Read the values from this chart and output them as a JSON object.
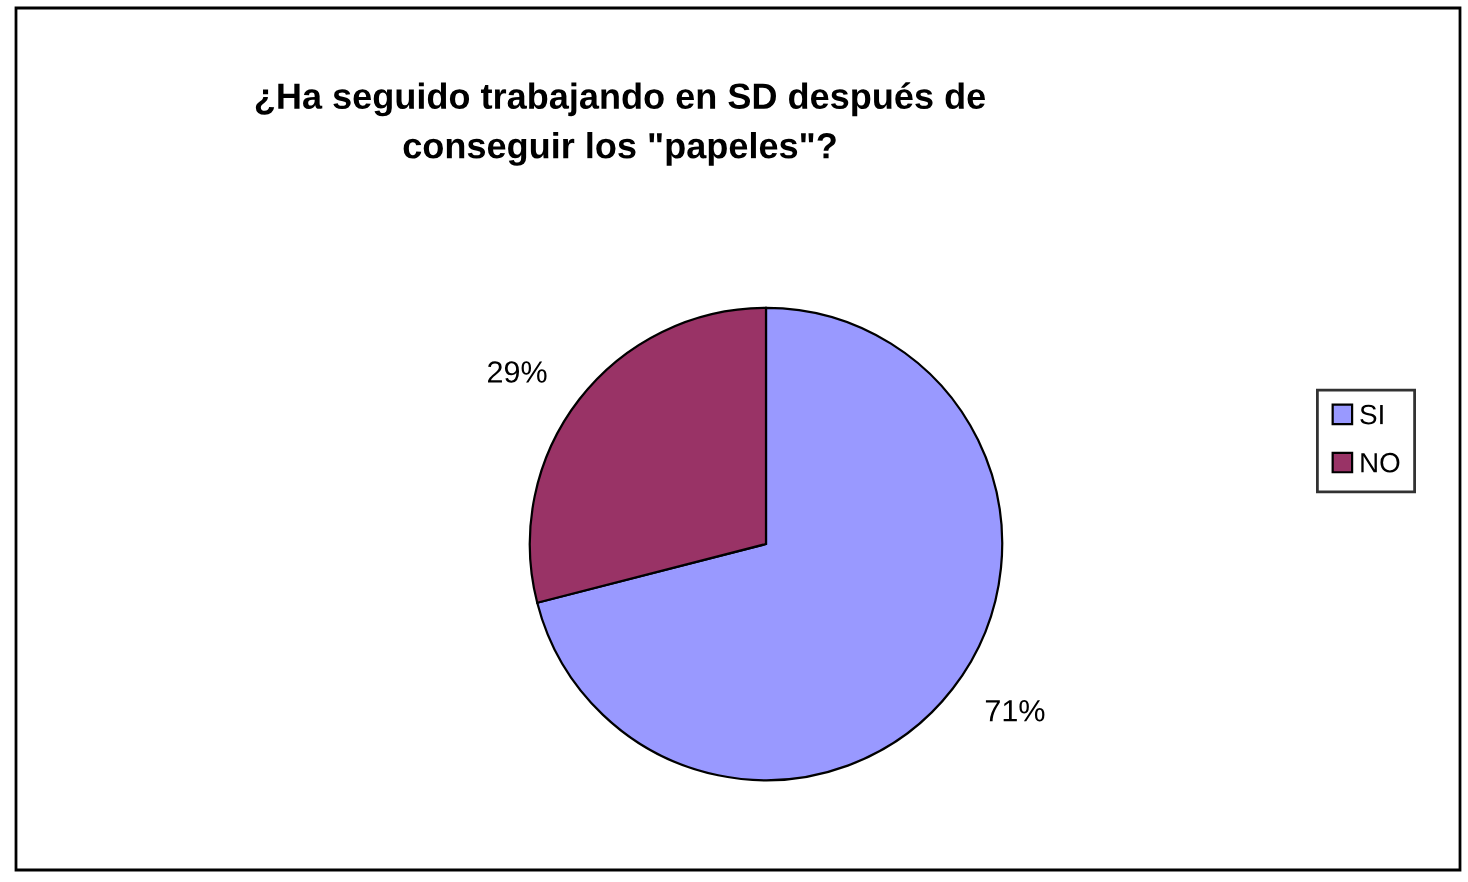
{
  "chart_data": {
    "type": "pie",
    "title": "¿Ha seguido trabajando en SD después de\nconseguir los \"papeles\"?",
    "categories": [
      "SI",
      "NO"
    ],
    "values": [
      71,
      29
    ],
    "value_labels": [
      "71%",
      "29%"
    ],
    "colors": [
      "#9999ff",
      "#993366"
    ],
    "legend": "right"
  }
}
